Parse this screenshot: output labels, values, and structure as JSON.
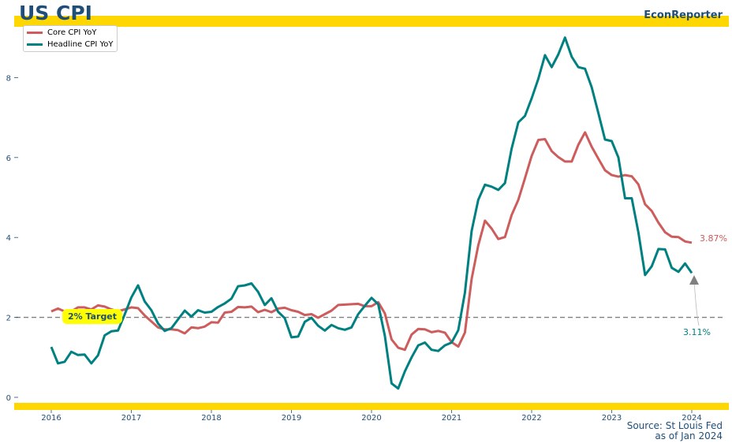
{
  "header": {
    "title": "US CPI",
    "brand": "EconReporter"
  },
  "footer": {
    "source": "Source: St Louis Fed",
    "date": "as of Jan 2024"
  },
  "annotations": {
    "target_label": "2% Target",
    "core_end_label": "3.87%",
    "headline_end_label": "3.11%"
  },
  "colors": {
    "core": "#cd5c5c",
    "headline": "#008080",
    "band": "#ffd700",
    "target_line": "#808080",
    "text": "#1f4e79"
  },
  "chart_data": {
    "type": "line",
    "title": "US CPI",
    "xlabel": "",
    "ylabel": "",
    "start": "2016-01",
    "frequency": "monthly",
    "xlim": [
      "2015-07",
      "2024-06"
    ],
    "ylim": [
      -0.2,
      9.2
    ],
    "x_ticks": [
      "2016",
      "2017",
      "2018",
      "2019",
      "2020",
      "2021",
      "2022",
      "2023",
      "2024"
    ],
    "y_ticks": [
      "0",
      "2",
      "4",
      "6",
      "8"
    ],
    "reference_line": 2,
    "legend_position": "top-left",
    "grid": false,
    "series": [
      {
        "name": "Core CPI YoY",
        "color": "#cd5c5c",
        "values": [
          2.15,
          2.22,
          2.15,
          2.15,
          2.25,
          2.25,
          2.2,
          2.3,
          2.27,
          2.2,
          2.15,
          2.2,
          2.25,
          2.23,
          2.05,
          1.9,
          1.75,
          1.7,
          1.7,
          1.68,
          1.6,
          1.75,
          1.73,
          1.77,
          1.88,
          1.87,
          2.12,
          2.14,
          2.26,
          2.25,
          2.27,
          2.13,
          2.19,
          2.13,
          2.22,
          2.24,
          2.18,
          2.14,
          2.06,
          2.08,
          1.99,
          2.08,
          2.17,
          2.31,
          2.32,
          2.33,
          2.34,
          2.28,
          2.28,
          2.38,
          2.1,
          1.45,
          1.24,
          1.19,
          1.57,
          1.71,
          1.7,
          1.63,
          1.66,
          1.62,
          1.38,
          1.27,
          1.62,
          2.96,
          3.8,
          4.42,
          4.22,
          3.96,
          4.01,
          4.56,
          4.94,
          5.48,
          6.04,
          6.44,
          6.46,
          6.16,
          6.01,
          5.9,
          5.9,
          6.32,
          6.63,
          6.27,
          5.97,
          5.68,
          5.56,
          5.52,
          5.56,
          5.53,
          5.33,
          4.83,
          4.66,
          4.37,
          4.13,
          4.02,
          4.01,
          3.9,
          3.87
        ]
      },
      {
        "name": "Headline CPI YoY",
        "color": "#008080",
        "values": [
          1.26,
          0.85,
          0.89,
          1.14,
          1.06,
          1.07,
          0.85,
          1.05,
          1.55,
          1.65,
          1.67,
          2.07,
          2.5,
          2.8,
          2.4,
          2.18,
          1.85,
          1.66,
          1.73,
          1.95,
          2.17,
          2.02,
          2.18,
          2.12,
          2.14,
          2.26,
          2.35,
          2.47,
          2.78,
          2.8,
          2.85,
          2.64,
          2.31,
          2.48,
          2.14,
          1.98,
          1.5,
          1.52,
          1.89,
          1.99,
          1.79,
          1.67,
          1.81,
          1.73,
          1.69,
          1.75,
          2.08,
          2.29,
          2.49,
          2.33,
          1.54,
          0.35,
          0.22,
          0.65,
          1.0,
          1.3,
          1.37,
          1.19,
          1.16,
          1.3,
          1.37,
          1.68,
          2.62,
          4.16,
          4.94,
          5.32,
          5.27,
          5.19,
          5.36,
          6.22,
          6.88,
          7.04,
          7.48,
          7.97,
          8.56,
          8.26,
          8.58,
          9.0,
          8.52,
          8.26,
          8.22,
          7.76,
          7.11,
          6.45,
          6.41,
          6.0,
          4.98,
          4.98,
          4.13,
          3.06,
          3.28,
          3.71,
          3.7,
          3.24,
          3.14,
          3.35,
          3.11
        ]
      }
    ]
  }
}
